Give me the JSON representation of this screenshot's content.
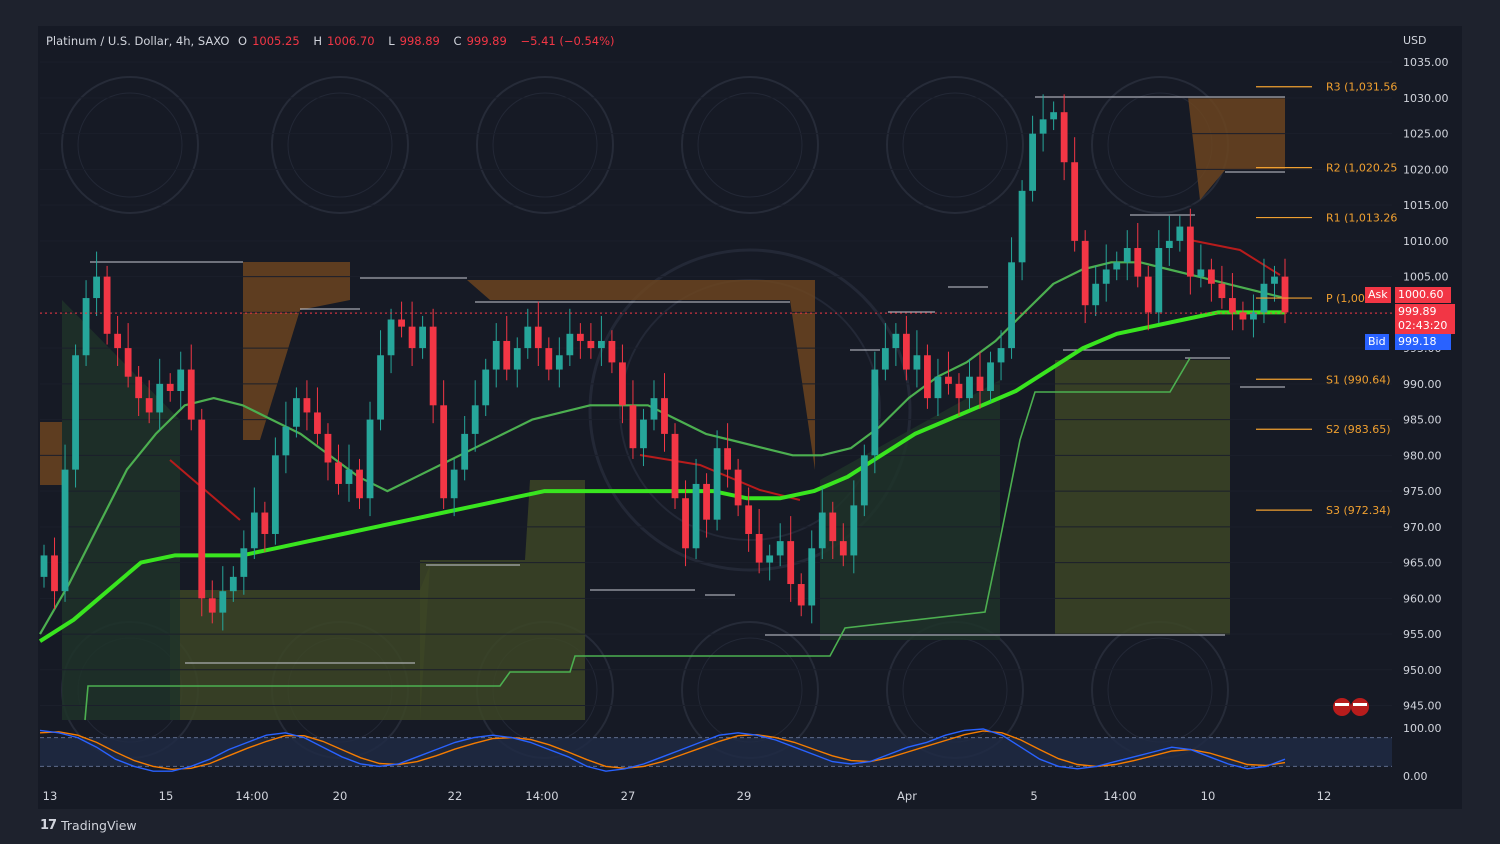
{
  "legend": {
    "symbol": "Platinum / U.S. Dollar, 4h, SAXO",
    "o_label": "O",
    "o_value": "1005.25",
    "h_label": "H",
    "h_value": "1006.70",
    "l_label": "L",
    "l_value": "998.89",
    "c_label": "C",
    "c_value": "999.89",
    "change": "−5.41 (−0.54%)"
  },
  "currency": "USD",
  "brand": {
    "logo": "17",
    "name": "TradingView"
  },
  "price_tags": {
    "ask_label": "Ask",
    "ask_value": "1000.60",
    "last_value": "999.89",
    "countdown": "02:43:20",
    "bid_label": "Bid",
    "bid_value": "999.18",
    "pivot_label": "P (1,00"
  },
  "colors": {
    "background": "#1e222d",
    "up": "#26a69a",
    "down": "#f23645",
    "ema_fast": "#4caf50",
    "ema_slow": "#39e51f",
    "pivot": "#f0a030",
    "cloud": "#a0522d",
    "stoch_k": "#2962ff",
    "stoch_d": "#f57c00"
  },
  "chart_data": {
    "type": "candlestick",
    "title": "Platinum / U.S. Dollar, 4h, SAXO",
    "y_axis": {
      "currency": "USD",
      "range": [
        942,
        1036
      ],
      "ticks": [
        "1035.00",
        "1030.00",
        "1025.00",
        "1020.00",
        "1015.00",
        "1010.00",
        "1005.00",
        "1000.00",
        "995.00",
        "990.00",
        "985.00",
        "980.00",
        "975.00",
        "970.00",
        "965.00",
        "960.00",
        "955.00",
        "950.00",
        "945.00"
      ]
    },
    "x_axis": {
      "ticks": [
        "13",
        "15",
        "14:00",
        "20",
        "22",
        "14:00",
        "27",
        "29",
        "Apr",
        "5",
        "14:00",
        "10",
        "12"
      ]
    },
    "pivot_levels": [
      {
        "label": "R3 (1,031.56",
        "value": 1031.56
      },
      {
        "label": "R2 (1,020.25",
        "value": 1020.25
      },
      {
        "label": "R1 (1,013.26",
        "value": 1013.26
      },
      {
        "label": "P (1,00",
        "value": 1002
      },
      {
        "label": "S1 (990.64)",
        "value": 990.64
      },
      {
        "label": "S2 (983.65)",
        "value": 983.65
      },
      {
        "label": "S3 (972.34)",
        "value": 972.34
      }
    ],
    "candles_close": [
      966,
      961,
      978,
      994,
      1002,
      1005,
      997,
      995,
      991,
      988,
      986,
      990,
      989,
      992,
      985,
      960,
      958,
      961,
      963,
      967,
      972,
      969,
      980,
      984,
      988,
      986,
      983,
      979,
      976,
      978,
      974,
      985,
      994,
      999,
      998,
      995,
      998,
      987,
      974,
      978,
      983,
      987,
      992,
      996,
      992,
      995,
      998,
      995,
      992,
      994,
      997,
      996,
      995,
      996,
      993,
      987,
      981,
      985,
      988,
      983,
      974,
      967,
      976,
      971,
      981,
      978,
      973,
      969,
      965,
      966,
      968,
      962,
      959,
      967,
      972,
      968,
      966,
      973,
      980,
      992,
      995,
      997,
      992,
      994,
      988,
      991,
      990,
      988,
      991,
      989,
      993,
      995,
      1007,
      1017,
      1025,
      1027,
      1028,
      1021,
      1010,
      1001,
      1004,
      1006,
      1007,
      1009,
      1005,
      1000,
      1009,
      1010,
      1012,
      1005,
      1006,
      1004,
      1002,
      1000,
      999,
      1000,
      1004,
      1005,
      1000
    ],
    "ema_series": [
      {
        "name": "",
        "values": [
          955,
          962,
          970,
          978,
          983,
          987,
          988,
          987,
          985,
          983,
          980,
          977,
          975,
          977,
          979,
          981,
          983,
          985,
          986,
          987,
          987,
          987,
          985,
          983,
          982,
          981,
          980,
          980,
          981,
          984,
          988,
          991,
          993,
          996,
          1000,
          1004,
          1006,
          1007,
          1007,
          1006,
          1005,
          1004,
          1003,
          1002
        ]
      },
      {
        "name": "",
        "values": [
          954,
          957,
          961,
          965,
          966,
          966,
          966,
          967,
          968,
          969,
          970,
          971,
          972,
          973,
          974,
          975,
          975,
          975,
          975,
          975,
          975,
          974,
          974,
          975,
          977,
          980,
          983,
          985,
          987,
          989,
          992,
          995,
          997,
          998,
          999,
          1000,
          1000,
          1000
        ]
      }
    ],
    "stochastic": {
      "range": [
        0,
        100
      ],
      "levels": [
        80,
        20
      ],
      "ticks": [
        "100.00",
        "0.00"
      ],
      "k": [
        95,
        90,
        80,
        60,
        35,
        20,
        10,
        10,
        20,
        35,
        55,
        70,
        85,
        90,
        80,
        60,
        40,
        25,
        20,
        25,
        40,
        55,
        70,
        80,
        85,
        80,
        70,
        55,
        40,
        20,
        10,
        15,
        25,
        40,
        55,
        70,
        85,
        90,
        85,
        75,
        60,
        45,
        30,
        25,
        30,
        45,
        60,
        70,
        85,
        95,
        98,
        85,
        60,
        35,
        20,
        15,
        20,
        30,
        40,
        50,
        60,
        55,
        40,
        25,
        15,
        20,
        35
      ],
      "d": [
        90,
        92,
        85,
        70,
        50,
        32,
        20,
        14,
        16,
        26,
        42,
        58,
        72,
        84,
        84,
        72,
        55,
        38,
        26,
        24,
        30,
        42,
        56,
        68,
        78,
        80,
        76,
        65,
        50,
        34,
        20,
        16,
        20,
        30,
        44,
        58,
        72,
        84,
        86,
        80,
        70,
        56,
        42,
        32,
        30,
        38,
        50,
        62,
        74,
        86,
        94,
        90,
        75,
        55,
        36,
        24,
        20,
        24,
        32,
        42,
        52,
        55,
        48,
        36,
        24,
        22,
        28
      ]
    }
  }
}
